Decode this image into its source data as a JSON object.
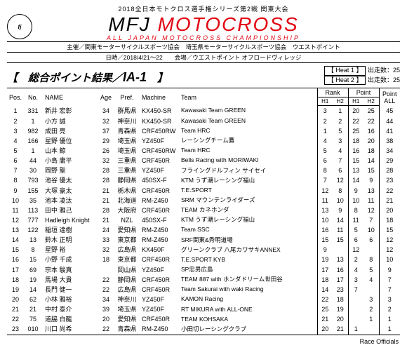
{
  "header": {
    "series": "2018全日本モトクロス選手権シリーズ第2戦 関東大会",
    "brand_black": "MFJ",
    "brand_red": "MOTOCROSS",
    "subbrand": "ALL JAPAN MOTOCROSS CHAMPIONSHIP",
    "organizer": "主催／関東モーターサイクルスポーツ協会　埼玉県モーターサイクルスポーツ協会　ウエストポイント",
    "date_venue": "日時／2018/4/21～22　　会場／ウエストポイント オフロードヴィレッジ",
    "title": "【　総合ポイント結果／",
    "class": "IA-1",
    "title_close": "　】",
    "heat1_label": "【 Heat 1 】",
    "heat2_label": "【 Heat 2 】",
    "starters_label": "出走数：",
    "heat1_starters": "25",
    "heat2_starters": "25"
  },
  "columns": {
    "pos": "Pos.",
    "no": "No.",
    "name": "NAME",
    "age": "Age",
    "pref": "Pref.",
    "machine": "Machine",
    "team": "Team",
    "rank": "Rank",
    "point": "Point",
    "h1": "H1",
    "h2": "H2",
    "point_all": "Point\nALL"
  },
  "rows": [
    {
      "pos": "1",
      "no": "331",
      "name": "新井 宏彰",
      "age": "34",
      "pref": "群馬県",
      "machine": "KX450-SR",
      "team": "Kawasaki Team GREEN",
      "rh1": "3",
      "rh2": "1",
      "ph1": "20",
      "ph2": "25",
      "pall": "45"
    },
    {
      "pos": "2",
      "no": "1",
      "name": "小方 誠",
      "age": "32",
      "pref": "神奈川",
      "machine": "KX450-SR",
      "team": "Kawasaki Team GREEN",
      "rh1": "2",
      "rh2": "2",
      "ph1": "22",
      "ph2": "22",
      "pall": "44"
    },
    {
      "pos": "3",
      "no": "982",
      "name": "成田 亮",
      "age": "37",
      "pref": "青森県",
      "machine": "CRF450RW",
      "team": "Team HRC",
      "rh1": "1",
      "rh2": "5",
      "ph1": "25",
      "ph2": "16",
      "pall": "41"
    },
    {
      "pos": "4",
      "no": "166",
      "name": "星野 優位",
      "age": "29",
      "pref": "埼玉県",
      "machine": "YZ450F",
      "team": "レーシングチーム鷹",
      "rh1": "4",
      "rh2": "3",
      "ph1": "18",
      "ph2": "20",
      "pall": "38"
    },
    {
      "pos": "5",
      "no": "1",
      "name": "山本 鯨",
      "age": "26",
      "pref": "埼玉県",
      "machine": "CRF450RW",
      "team": "Team HRC",
      "rh1": "5",
      "rh2": "4",
      "ph1": "16",
      "ph2": "18",
      "pall": "34"
    },
    {
      "pos": "6",
      "no": "44",
      "name": "小島 庸平",
      "age": "32",
      "pref": "三重県",
      "machine": "CRF450R",
      "team": "Bells Racing with MORIWAKI",
      "rh1": "6",
      "rh2": "7",
      "ph1": "15",
      "ph2": "14",
      "pall": "29"
    },
    {
      "pos": "7",
      "no": "30",
      "name": "岡野 聖",
      "age": "28",
      "pref": "三重県",
      "machine": "YZ450F",
      "team": "フライングドルフィン サイセイ",
      "rh1": "8",
      "rh2": "6",
      "ph1": "13",
      "ph2": "15",
      "pall": "28"
    },
    {
      "pos": "8",
      "no": "793",
      "name": "池谷 優太",
      "age": "28",
      "pref": "静岡県",
      "machine": "450SX-F",
      "team": "KTM うず潮レーシング福山",
      "rh1": "7",
      "rh2": "12",
      "ph1": "14",
      "ph2": "9",
      "pall": "23"
    },
    {
      "pos": "9",
      "no": "155",
      "name": "大塚 豪太",
      "age": "21",
      "pref": "栃木県",
      "machine": "CRF450R",
      "team": "T.E.SPORT",
      "rh1": "12",
      "rh2": "8",
      "ph1": "9",
      "ph2": "13",
      "pall": "22"
    },
    {
      "pos": "10",
      "no": "35",
      "name": "池本 凌汰",
      "age": "21",
      "pref": "北海道",
      "machine": "RM-Z450",
      "team": "SRM マウンテンライダーズ",
      "rh1": "11",
      "rh2": "10",
      "ph1": "10",
      "ph2": "11",
      "pall": "21"
    },
    {
      "pos": "11",
      "no": "113",
      "name": "田中 雅己",
      "age": "28",
      "pref": "大阪府",
      "machine": "CRF450R",
      "team": "TEAM カネホンダ",
      "rh1": "13",
      "rh2": "9",
      "ph1": "8",
      "ph2": "12",
      "pall": "20"
    },
    {
      "pos": "12",
      "no": "777",
      "name": "Hadleigh Knight",
      "age": "21",
      "pref": "NZL",
      "machine": "450SX-F",
      "team": "KTM うず潮レーシング福山",
      "rh1": "10",
      "rh2": "14",
      "ph1": "11",
      "ph2": "7",
      "pall": "18"
    },
    {
      "pos": "13",
      "no": "122",
      "name": "稲垣 達樹",
      "age": "24",
      "pref": "愛知県",
      "machine": "RM-Z450",
      "team": "Team SSC",
      "rh1": "16",
      "rh2": "11",
      "ph1": "5",
      "ph2": "10",
      "pall": "15"
    },
    {
      "pos": "14",
      "no": "13",
      "name": "鈴木 正明",
      "age": "33",
      "pref": "東京都",
      "machine": "RM-Z450",
      "team": "SRF関東&秀明道場",
      "rh1": "15",
      "rh2": "15",
      "ph1": "6",
      "ph2": "6",
      "pall": "12"
    },
    {
      "pos": "15",
      "no": "8",
      "name": "星野 裕",
      "age": "32",
      "pref": "広島県",
      "machine": "KX450F",
      "team": "グリーンクラブ 八尾カワサキANNEX",
      "rh1": "9",
      "rh2": "",
      "ph1": "12",
      "ph2": "",
      "pall": "12"
    },
    {
      "pos": "16",
      "no": "15",
      "name": "小野 千成",
      "age": "18",
      "pref": "東京都",
      "machine": "CRF450R",
      "team": "T.E.SPORT KYB",
      "rh1": "19",
      "rh2": "13",
      "ph1": "2",
      "ph2": "8",
      "pall": "10"
    },
    {
      "pos": "17",
      "no": "69",
      "name": "宗本 駿真",
      "age": "",
      "pref": "岡山県",
      "machine": "YZ450F",
      "team": "SP忠男広島",
      "rh1": "17",
      "rh2": "16",
      "ph1": "4",
      "ph2": "5",
      "pall": "9"
    },
    {
      "pos": "18",
      "no": "19",
      "name": "馬場 大貴",
      "age": "22",
      "pref": "静岡県",
      "machine": "CRF450R",
      "team": "TEAM 887 with ホンダドリーム世田谷",
      "rh1": "18",
      "rh2": "17",
      "ph1": "3",
      "ph2": "4",
      "pall": "7"
    },
    {
      "pos": "19",
      "no": "14",
      "name": "長門 健一",
      "age": "22",
      "pref": "広島県",
      "machine": "CRF450R",
      "team": "Team Sakurai with waki Racing",
      "rh1": "14",
      "rh2": "23",
      "ph1": "7",
      "ph2": "",
      "pall": "7"
    },
    {
      "pos": "20",
      "no": "62",
      "name": "小林 雅裕",
      "age": "34",
      "pref": "神奈川",
      "machine": "YZ450F",
      "team": "KAMON Racing",
      "rh1": "22",
      "rh2": "18",
      "ph1": "",
      "ph2": "3",
      "pall": "3"
    },
    {
      "pos": "21",
      "no": "21",
      "name": "中村 泰介",
      "age": "39",
      "pref": "埼玉県",
      "machine": "YZ450F",
      "team": "RT MIKURA with ALL-ONE",
      "rh1": "25",
      "rh2": "19",
      "ph1": "",
      "ph2": "2",
      "pall": "2"
    },
    {
      "pos": "22",
      "no": "75",
      "name": "道脇 白龍",
      "age": "20",
      "pref": "愛知県",
      "machine": "CRF450R",
      "team": "TEAM KOHSAKA",
      "rh1": "21",
      "rh2": "20",
      "ph1": "",
      "ph2": "1",
      "pall": "1"
    },
    {
      "pos": "23",
      "no": "010",
      "name": "川口 尚希",
      "age": "22",
      "pref": "青森県",
      "machine": "RM-Z450",
      "team": "小田切レーシングクラブ",
      "rh1": "20",
      "rh2": "21",
      "ph1": "1",
      "ph2": "",
      "pall": "1"
    }
  ],
  "footer": {
    "officials": "Race Officials"
  }
}
